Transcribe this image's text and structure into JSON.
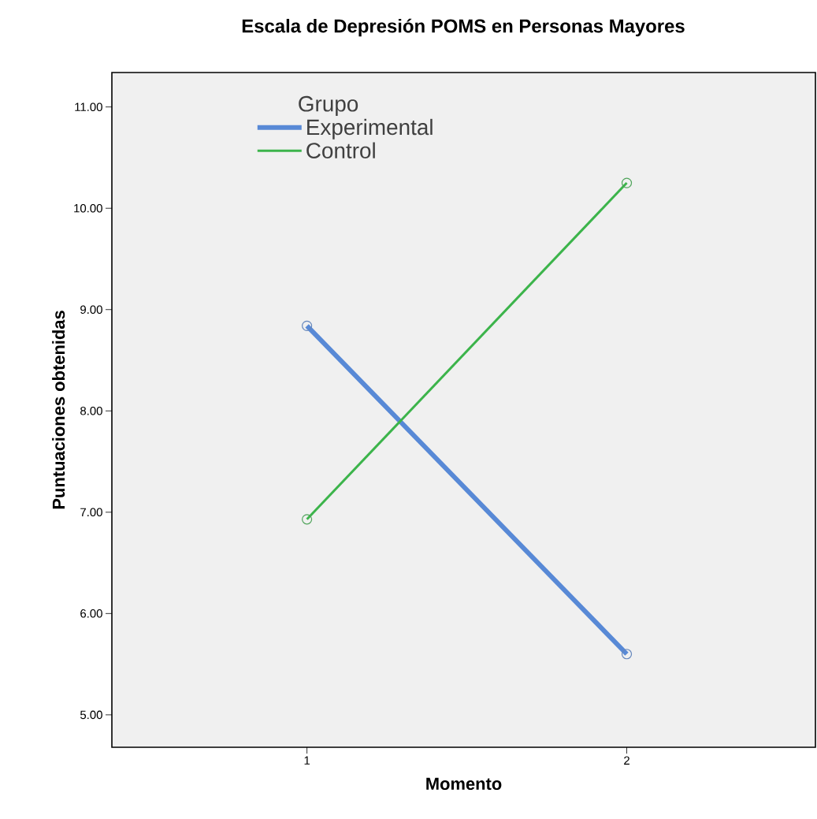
{
  "chart_data": {
    "type": "line",
    "title": "Escala de Depresión POMS en Personas Mayores",
    "xlabel": "Momento",
    "ylabel": "Puntuaciones obtenidas",
    "legend_title": "Grupo",
    "x": [
      1,
      2
    ],
    "series": [
      {
        "name": "Experimental",
        "color": "#5889d6",
        "values": [
          8.84,
          5.6
        ]
      },
      {
        "name": "Control",
        "color": "#3cb44b",
        "values": [
          6.93,
          10.25
        ]
      }
    ],
    "xlim": [
      0.39,
      2.59
    ],
    "xticks": [
      1,
      2
    ],
    "ylim": [
      4.68,
      11.34
    ],
    "yticks": [
      {
        "value": 5,
        "label": "5.00"
      },
      {
        "value": 6,
        "label": "6.00"
      },
      {
        "value": 7,
        "label": "7.00"
      },
      {
        "value": 8,
        "label": "8.00"
      },
      {
        "value": 9,
        "label": "9.00"
      },
      {
        "value": 10,
        "label": "10.00"
      },
      {
        "value": 11,
        "label": "11.00"
      }
    ],
    "legend": "top left",
    "marker": "circle",
    "line_style": "solid",
    "grid": false
  }
}
